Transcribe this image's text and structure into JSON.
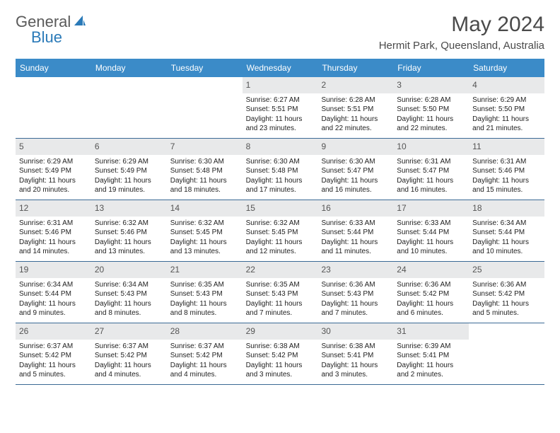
{
  "logo": {
    "text1": "General",
    "text2": "Blue"
  },
  "title": "May 2024",
  "location": "Hermit Park, Queensland, Australia",
  "colors": {
    "header_bg": "#3b8bc8",
    "header_text": "#ffffff",
    "daynum_bg": "#e8e9ea",
    "row_border": "#3b6a95",
    "logo_gray": "#5a5a5a",
    "logo_blue": "#2a7ab8",
    "title_color": "#4a4a4a",
    "body_text": "#222222",
    "background": "#ffffff"
  },
  "typography": {
    "month_title_size": 30,
    "location_size": 15,
    "dow_size": 12,
    "daynum_size": 12,
    "body_size": 10,
    "font_family": "Arial"
  },
  "calendar": {
    "type": "table",
    "days_of_week": [
      "Sunday",
      "Monday",
      "Tuesday",
      "Wednesday",
      "Thursday",
      "Friday",
      "Saturday"
    ],
    "weeks": [
      [
        null,
        null,
        null,
        {
          "n": "1",
          "sunrise": "6:27 AM",
          "sunset": "5:51 PM",
          "daylight": "11 hours and 23 minutes."
        },
        {
          "n": "2",
          "sunrise": "6:28 AM",
          "sunset": "5:51 PM",
          "daylight": "11 hours and 22 minutes."
        },
        {
          "n": "3",
          "sunrise": "6:28 AM",
          "sunset": "5:50 PM",
          "daylight": "11 hours and 22 minutes."
        },
        {
          "n": "4",
          "sunrise": "6:29 AM",
          "sunset": "5:50 PM",
          "daylight": "11 hours and 21 minutes."
        }
      ],
      [
        {
          "n": "5",
          "sunrise": "6:29 AM",
          "sunset": "5:49 PM",
          "daylight": "11 hours and 20 minutes."
        },
        {
          "n": "6",
          "sunrise": "6:29 AM",
          "sunset": "5:49 PM",
          "daylight": "11 hours and 19 minutes."
        },
        {
          "n": "7",
          "sunrise": "6:30 AM",
          "sunset": "5:48 PM",
          "daylight": "11 hours and 18 minutes."
        },
        {
          "n": "8",
          "sunrise": "6:30 AM",
          "sunset": "5:48 PM",
          "daylight": "11 hours and 17 minutes."
        },
        {
          "n": "9",
          "sunrise": "6:30 AM",
          "sunset": "5:47 PM",
          "daylight": "11 hours and 16 minutes."
        },
        {
          "n": "10",
          "sunrise": "6:31 AM",
          "sunset": "5:47 PM",
          "daylight": "11 hours and 16 minutes."
        },
        {
          "n": "11",
          "sunrise": "6:31 AM",
          "sunset": "5:46 PM",
          "daylight": "11 hours and 15 minutes."
        }
      ],
      [
        {
          "n": "12",
          "sunrise": "6:31 AM",
          "sunset": "5:46 PM",
          "daylight": "11 hours and 14 minutes."
        },
        {
          "n": "13",
          "sunrise": "6:32 AM",
          "sunset": "5:46 PM",
          "daylight": "11 hours and 13 minutes."
        },
        {
          "n": "14",
          "sunrise": "6:32 AM",
          "sunset": "5:45 PM",
          "daylight": "11 hours and 13 minutes."
        },
        {
          "n": "15",
          "sunrise": "6:32 AM",
          "sunset": "5:45 PM",
          "daylight": "11 hours and 12 minutes."
        },
        {
          "n": "16",
          "sunrise": "6:33 AM",
          "sunset": "5:44 PM",
          "daylight": "11 hours and 11 minutes."
        },
        {
          "n": "17",
          "sunrise": "6:33 AM",
          "sunset": "5:44 PM",
          "daylight": "11 hours and 10 minutes."
        },
        {
          "n": "18",
          "sunrise": "6:34 AM",
          "sunset": "5:44 PM",
          "daylight": "11 hours and 10 minutes."
        }
      ],
      [
        {
          "n": "19",
          "sunrise": "6:34 AM",
          "sunset": "5:44 PM",
          "daylight": "11 hours and 9 minutes."
        },
        {
          "n": "20",
          "sunrise": "6:34 AM",
          "sunset": "5:43 PM",
          "daylight": "11 hours and 8 minutes."
        },
        {
          "n": "21",
          "sunrise": "6:35 AM",
          "sunset": "5:43 PM",
          "daylight": "11 hours and 8 minutes."
        },
        {
          "n": "22",
          "sunrise": "6:35 AM",
          "sunset": "5:43 PM",
          "daylight": "11 hours and 7 minutes."
        },
        {
          "n": "23",
          "sunrise": "6:36 AM",
          "sunset": "5:43 PM",
          "daylight": "11 hours and 7 minutes."
        },
        {
          "n": "24",
          "sunrise": "6:36 AM",
          "sunset": "5:42 PM",
          "daylight": "11 hours and 6 minutes."
        },
        {
          "n": "25",
          "sunrise": "6:36 AM",
          "sunset": "5:42 PM",
          "daylight": "11 hours and 5 minutes."
        }
      ],
      [
        {
          "n": "26",
          "sunrise": "6:37 AM",
          "sunset": "5:42 PM",
          "daylight": "11 hours and 5 minutes."
        },
        {
          "n": "27",
          "sunrise": "6:37 AM",
          "sunset": "5:42 PM",
          "daylight": "11 hours and 4 minutes."
        },
        {
          "n": "28",
          "sunrise": "6:37 AM",
          "sunset": "5:42 PM",
          "daylight": "11 hours and 4 minutes."
        },
        {
          "n": "29",
          "sunrise": "6:38 AM",
          "sunset": "5:42 PM",
          "daylight": "11 hours and 3 minutes."
        },
        {
          "n": "30",
          "sunrise": "6:38 AM",
          "sunset": "5:41 PM",
          "daylight": "11 hours and 3 minutes."
        },
        {
          "n": "31",
          "sunrise": "6:39 AM",
          "sunset": "5:41 PM",
          "daylight": "11 hours and 2 minutes."
        },
        null
      ]
    ],
    "labels": {
      "sunrise_prefix": "Sunrise: ",
      "sunset_prefix": "Sunset: ",
      "daylight_prefix": "Daylight: "
    }
  }
}
